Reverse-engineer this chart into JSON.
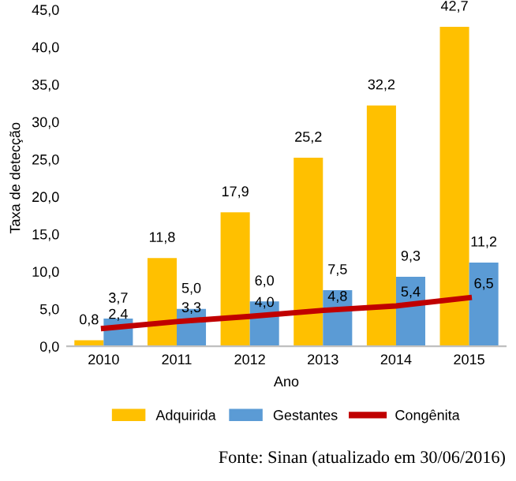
{
  "chart_data": {
    "type": "bar",
    "xlabel": "Ano",
    "ylabel": "Taxa de detecção",
    "categories": [
      "2010",
      "2011",
      "2012",
      "2013",
      "2014",
      "2015"
    ],
    "series": [
      {
        "name": "Adquirida",
        "color": "#ffc000",
        "values": [
          0.8,
          11.8,
          17.9,
          25.2,
          32.2,
          42.7
        ],
        "value_labels": [
          "0,8",
          "11,8",
          "17,9",
          "25,2",
          "32,2",
          "42,7"
        ]
      },
      {
        "name": "Gestantes",
        "color": "#5b9bd5",
        "values": [
          3.7,
          5.0,
          6.0,
          7.5,
          9.3,
          11.2
        ],
        "value_labels": [
          "3,7",
          "5,0",
          "6,0",
          "7,5",
          "9,3",
          "11,2"
        ]
      },
      {
        "name": "Congênita",
        "type": "line",
        "color": "#c00000",
        "values": [
          2.4,
          3.3,
          4.0,
          4.8,
          5.4,
          6.5
        ],
        "value_labels": [
          "2,4",
          "3,3",
          "4,0",
          "4,8",
          "5,4",
          "6,5"
        ]
      }
    ],
    "ylim": [
      0,
      45
    ],
    "yticks": [
      {
        "value": 0,
        "label": "0,0"
      },
      {
        "value": 5,
        "label": "5,0"
      },
      {
        "value": 10,
        "label": "10,0"
      },
      {
        "value": 15,
        "label": "15,0"
      },
      {
        "value": 20,
        "label": "20,0"
      },
      {
        "value": 25,
        "label": "25,0"
      },
      {
        "value": 30,
        "label": "30,0"
      },
      {
        "value": 35,
        "label": "35,0"
      },
      {
        "value": 40,
        "label": "40,0"
      },
      {
        "value": 45,
        "label": "45,0"
      }
    ],
    "legend": "bottom",
    "grid": false,
    "marker": "none",
    "line_style": "solid",
    "annotations": [
      "Fonte: Sinan (atualizado em 30/06/2016)"
    ]
  }
}
